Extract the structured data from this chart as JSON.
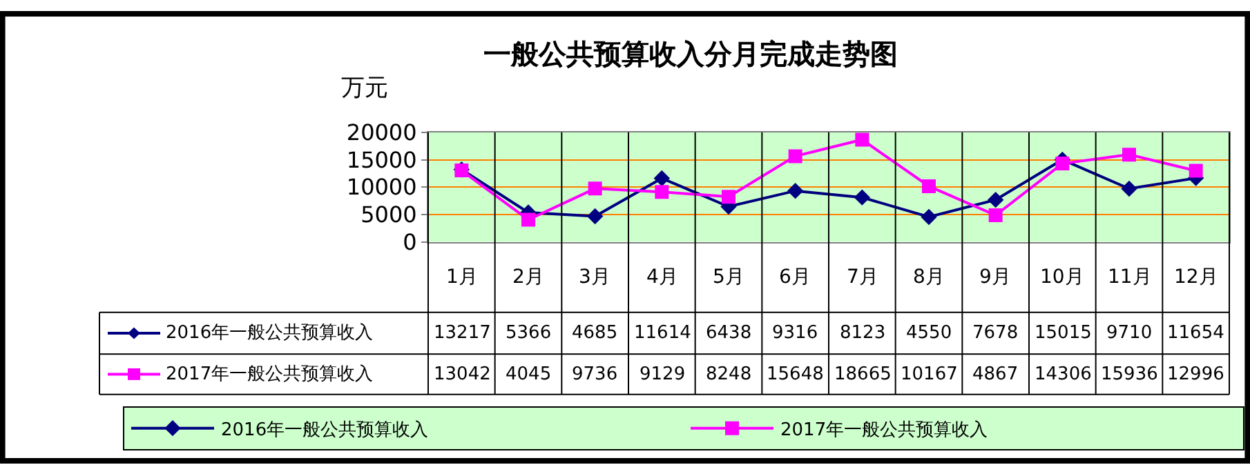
{
  "chart_data": {
    "type": "line",
    "title": "一般公共预算收入分月完成走势图",
    "ylabel": "万元",
    "categories": [
      "1月",
      "2月",
      "3月",
      "4月",
      "5月",
      "6月",
      "7月",
      "8月",
      "9月",
      "10月",
      "11月",
      "12月"
    ],
    "series": [
      {
        "name": "2016年一般公共预算收入",
        "color": "#000080",
        "marker": "diamond",
        "values": [
          13217,
          5366,
          4685,
          11614,
          6438,
          9316,
          8123,
          4550,
          7678,
          15015,
          9710,
          11654
        ]
      },
      {
        "name": "2017年一般公共预算收入",
        "color": "#ff00ff",
        "marker": "square",
        "values": [
          13042,
          4045,
          9736,
          9129,
          8248,
          15648,
          18665,
          10167,
          4867,
          14306,
          15936,
          12996
        ]
      }
    ],
    "ylim": [
      0,
      20000
    ],
    "yticks": [
      0,
      5000,
      10000,
      15000,
      20000
    ],
    "grid": "y",
    "legend": "bottom",
    "data_labels": true
  }
}
